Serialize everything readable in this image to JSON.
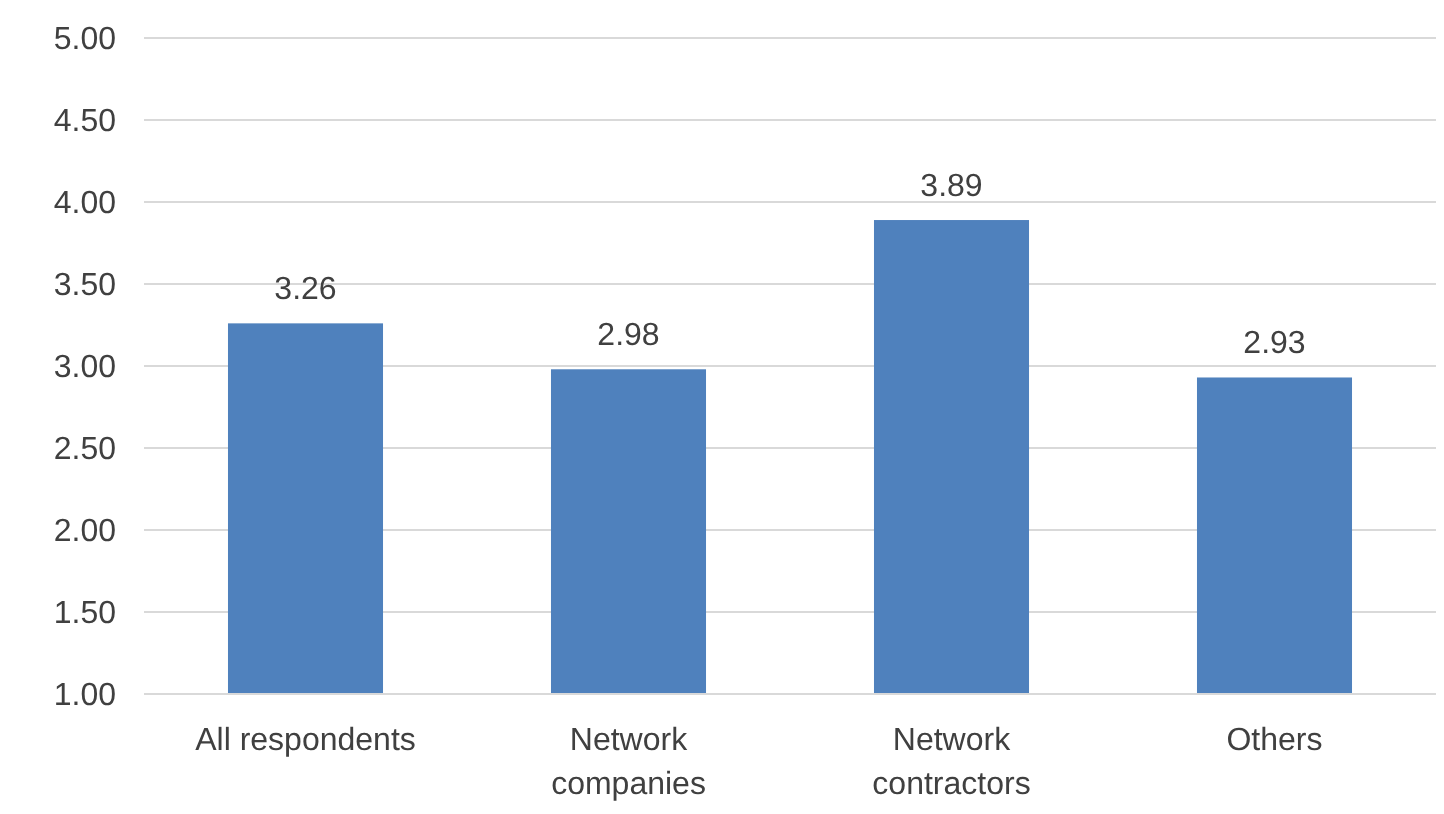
{
  "chart_data": {
    "type": "bar",
    "categories": [
      "All respondents",
      "Network companies",
      "Network contractors",
      "Others"
    ],
    "values": [
      3.26,
      2.98,
      3.89,
      2.93
    ],
    "color": "#4f81bd",
    "ylim": [
      1,
      5
    ],
    "yticks": [
      {
        "value": 1,
        "label": "1.00"
      },
      {
        "value": 1.5,
        "label": "1.50"
      },
      {
        "value": 2,
        "label": "2.00"
      },
      {
        "value": 2.5,
        "label": "2.50"
      },
      {
        "value": 3,
        "label": "3.00"
      },
      {
        "value": 3.5,
        "label": "3.50"
      },
      {
        "value": 4,
        "label": "4.00"
      },
      {
        "value": 4.5,
        "label": "4.50"
      },
      {
        "value": 5,
        "label": "5.00"
      }
    ],
    "grid": "y",
    "data_labels": true
  }
}
